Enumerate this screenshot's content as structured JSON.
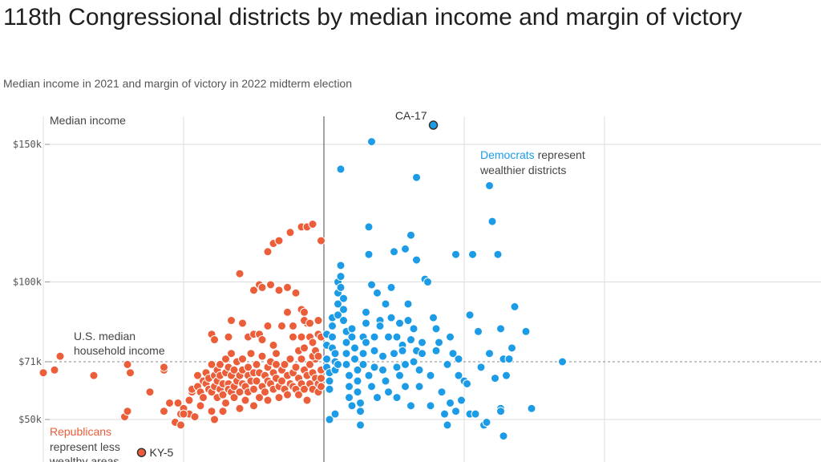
{
  "title": "118th Congressional districts by median income and margin of victory",
  "subtitle": "Median income in 2021 and margin of victory in 2022 midterm election",
  "colors": {
    "republican": "#eb5e39",
    "democrat": "#1c9be6",
    "grid": "#dddddd",
    "axis": "#666666"
  },
  "chart_data": {
    "type": "scatter",
    "ylabel": "Median income",
    "y_ticks": [
      {
        "value": 150,
        "label": "$150k"
      },
      {
        "value": 100,
        "label": "$100k"
      },
      {
        "value": 71,
        "label": "$71k"
      },
      {
        "value": 50,
        "label": "$50k"
      }
    ],
    "xlim": [
      -100,
      100
    ],
    "ylim": [
      35,
      160
    ],
    "reference_line": {
      "y": 71,
      "label_lines": [
        "U.S. median",
        "household income"
      ]
    },
    "annotations": {
      "democrats": {
        "highlight": "Democrats",
        "rest": " represent",
        "line2": "wealthier districts"
      },
      "republicans": {
        "highlight": "Republicans",
        "line2": "represent less",
        "line3": "wealthy areas"
      }
    },
    "highlighted": [
      {
        "label": "CA-17",
        "x": 39,
        "y": 157,
        "party": "D"
      },
      {
        "label": "KY-5",
        "x": -65,
        "y": 38,
        "party": "R"
      }
    ],
    "series": [
      {
        "name": "Republicans",
        "points": [
          [
            -100,
            67
          ],
          [
            -96,
            68
          ],
          [
            -94,
            73
          ],
          [
            -82,
            66
          ],
          [
            -70,
            70
          ],
          [
            -69,
            67
          ],
          [
            -71,
            51
          ],
          [
            -70,
            53
          ],
          [
            -62,
            60
          ],
          [
            -57,
            53
          ],
          [
            -57,
            68
          ],
          [
            -57,
            69
          ],
          [
            -55,
            56
          ],
          [
            -53,
            49
          ],
          [
            -52,
            56
          ],
          [
            -51,
            52
          ],
          [
            -51,
            48
          ],
          [
            -50,
            54
          ],
          [
            -48,
            57
          ],
          [
            -48,
            52
          ],
          [
            -47,
            60
          ],
          [
            -47,
            61
          ],
          [
            -46,
            51
          ],
          [
            -45,
            62
          ],
          [
            -45,
            66
          ],
          [
            -44,
            60
          ],
          [
            -44,
            55
          ],
          [
            -43,
            58
          ],
          [
            -43,
            64
          ],
          [
            -42,
            63
          ],
          [
            -42,
            67
          ],
          [
            -41,
            61
          ],
          [
            -41,
            65
          ],
          [
            -40,
            70
          ],
          [
            -40,
            60
          ],
          [
            -40,
            53
          ],
          [
            -39,
            66
          ],
          [
            -39,
            62
          ],
          [
            -39,
            50
          ],
          [
            -38,
            64
          ],
          [
            -38,
            68
          ],
          [
            -38,
            58
          ],
          [
            -37,
            61
          ],
          [
            -37,
            66
          ],
          [
            -37,
            70
          ],
          [
            -36,
            63
          ],
          [
            -36,
            59
          ],
          [
            -36,
            53
          ],
          [
            -35,
            67
          ],
          [
            -35,
            72
          ],
          [
            -35,
            56
          ],
          [
            -34,
            63
          ],
          [
            -34,
            61
          ],
          [
            -34,
            69
          ],
          [
            -33,
            66
          ],
          [
            -33,
            60
          ],
          [
            -33,
            74
          ],
          [
            -32,
            62
          ],
          [
            -32,
            68
          ],
          [
            -32,
            58
          ],
          [
            -31,
            71
          ],
          [
            -31,
            64
          ],
          [
            -30,
            66
          ],
          [
            -30,
            60
          ],
          [
            -30,
            54
          ],
          [
            -29,
            72
          ],
          [
            -29,
            68
          ],
          [
            -29,
            63
          ],
          [
            -28,
            62
          ],
          [
            -28,
            57
          ],
          [
            -27,
            66
          ],
          [
            -27,
            60
          ],
          [
            -27,
            69
          ],
          [
            -26,
            64
          ],
          [
            -26,
            74
          ],
          [
            -25,
            67
          ],
          [
            -25,
            61
          ],
          [
            -25,
            55
          ],
          [
            -24,
            70
          ],
          [
            -24,
            64
          ],
          [
            -23,
            58
          ],
          [
            -23,
            67
          ],
          [
            -22,
            73
          ],
          [
            -22,
            62
          ],
          [
            -21,
            66
          ],
          [
            -21,
            60
          ],
          [
            -20,
            69
          ],
          [
            -20,
            64
          ],
          [
            -20,
            57
          ],
          [
            -19,
            71
          ],
          [
            -19,
            63
          ],
          [
            -18,
            67
          ],
          [
            -18,
            61
          ],
          [
            -17,
            74
          ],
          [
            -17,
            65
          ],
          [
            -16,
            62
          ],
          [
            -16,
            58
          ],
          [
            -15,
            68
          ],
          [
            -15,
            64
          ],
          [
            -14,
            70
          ],
          [
            -14,
            61
          ],
          [
            -13,
            66
          ],
          [
            -13,
            59
          ],
          [
            -12,
            72
          ],
          [
            -12,
            63
          ],
          [
            -11,
            67
          ],
          [
            -11,
            62
          ],
          [
            -10,
            69
          ],
          [
            -10,
            61
          ],
          [
            -9,
            65
          ],
          [
            -9,
            59
          ],
          [
            -8,
            72
          ],
          [
            -8,
            63
          ],
          [
            -7,
            68
          ],
          [
            -7,
            61
          ],
          [
            -6,
            66
          ],
          [
            -6,
            57
          ],
          [
            -5,
            63
          ],
          [
            -5,
            70
          ],
          [
            -4,
            67
          ],
          [
            -4,
            61
          ],
          [
            -3,
            65
          ],
          [
            -3,
            72
          ],
          [
            -2,
            63
          ],
          [
            -2,
            60
          ],
          [
            -1,
            68
          ],
          [
            -1,
            65
          ],
          [
            -1,
            62
          ],
          [
            -40,
            81
          ],
          [
            -39,
            79
          ],
          [
            -34,
            80
          ],
          [
            -33,
            86
          ],
          [
            -29,
            85
          ],
          [
            -27,
            80
          ],
          [
            -25,
            81
          ],
          [
            -23,
            81
          ],
          [
            -22,
            79
          ],
          [
            -20,
            84
          ],
          [
            -18,
            77
          ],
          [
            -17,
            70
          ],
          [
            -15,
            84
          ],
          [
            -13,
            89
          ],
          [
            -11,
            84
          ],
          [
            -11,
            80
          ],
          [
            -9,
            75
          ],
          [
            -8,
            80
          ],
          [
            -7,
            76
          ],
          [
            -6,
            85
          ],
          [
            -5,
            80
          ],
          [
            -4,
            73
          ],
          [
            -3,
            75
          ],
          [
            -2,
            73
          ],
          [
            -30,
            103
          ],
          [
            -25,
            97
          ],
          [
            -23,
            99
          ],
          [
            -22,
            98
          ],
          [
            -19,
            99
          ],
          [
            -16,
            97
          ],
          [
            -13,
            98
          ],
          [
            -10,
            96
          ],
          [
            -8,
            90
          ],
          [
            -7,
            89
          ],
          [
            -7,
            86
          ],
          [
            -5,
            85
          ],
          [
            -4,
            78
          ],
          [
            -2,
            86
          ],
          [
            -2,
            81
          ],
          [
            -1,
            80
          ],
          [
            -20,
            111
          ],
          [
            -18,
            114
          ],
          [
            -16,
            115
          ],
          [
            -12,
            118
          ],
          [
            -8,
            120
          ],
          [
            -6,
            120
          ],
          [
            -4,
            121
          ],
          [
            -1,
            115
          ],
          [
            -10,
            96
          ],
          [
            -50,
            52
          ]
        ]
      },
      {
        "name": "Democrats",
        "points": [
          [
            1,
            81
          ],
          [
            1,
            77
          ],
          [
            1,
            72
          ],
          [
            1,
            69
          ],
          [
            2,
            67
          ],
          [
            2,
            64
          ],
          [
            2,
            61
          ],
          [
            2,
            50
          ],
          [
            3,
            87
          ],
          [
            3,
            84
          ],
          [
            3,
            80
          ],
          [
            3,
            76
          ],
          [
            4,
            74
          ],
          [
            4,
            71
          ],
          [
            4,
            68
          ],
          [
            4,
            52
          ],
          [
            5,
            100
          ],
          [
            5,
            96
          ],
          [
            5,
            92
          ],
          [
            5,
            88
          ],
          [
            5,
            70
          ],
          [
            6,
            106
          ],
          [
            6,
            102
          ],
          [
            6,
            98
          ],
          [
            7,
            94
          ],
          [
            7,
            90
          ],
          [
            7,
            86
          ],
          [
            8,
            82
          ],
          [
            8,
            78
          ],
          [
            8,
            74
          ],
          [
            8,
            70
          ],
          [
            9,
            66
          ],
          [
            9,
            62
          ],
          [
            9,
            58
          ],
          [
            10,
            55
          ],
          [
            10,
            80
          ],
          [
            10,
            83
          ],
          [
            11,
            76
          ],
          [
            11,
            72
          ],
          [
            12,
            68
          ],
          [
            12,
            64
          ],
          [
            12,
            60
          ],
          [
            13,
            56
          ],
          [
            13,
            53
          ],
          [
            13,
            48
          ],
          [
            14,
            80
          ],
          [
            14,
            74
          ],
          [
            14,
            70
          ],
          [
            15,
            89
          ],
          [
            15,
            85
          ],
          [
            15,
            78
          ],
          [
            16,
            110
          ],
          [
            16,
            66
          ],
          [
            17,
            99
          ],
          [
            17,
            62
          ],
          [
            18,
            80
          ],
          [
            18,
            75
          ],
          [
            18,
            69
          ],
          [
            19,
            96
          ],
          [
            19,
            58
          ],
          [
            20,
            86
          ],
          [
            20,
            84
          ],
          [
            21,
            73
          ],
          [
            21,
            68
          ],
          [
            22,
            92
          ],
          [
            22,
            64
          ],
          [
            23,
            80
          ],
          [
            23,
            60
          ],
          [
            24,
            98
          ],
          [
            24,
            87
          ],
          [
            25,
            111
          ],
          [
            25,
            74
          ],
          [
            26,
            80
          ],
          [
            26,
            69
          ],
          [
            26,
            58
          ],
          [
            27,
            85
          ],
          [
            27,
            66
          ],
          [
            28,
            77
          ],
          [
            28,
            75
          ],
          [
            29,
            112
          ],
          [
            29,
            70
          ],
          [
            29,
            62
          ],
          [
            30,
            92
          ],
          [
            30,
            86
          ],
          [
            31,
            79
          ],
          [
            31,
            55
          ],
          [
            32,
            83
          ],
          [
            32,
            71
          ],
          [
            33,
            108
          ],
          [
            33,
            75
          ],
          [
            34,
            68
          ],
          [
            34,
            62
          ],
          [
            35,
            78
          ],
          [
            35,
            74
          ],
          [
            36,
            101
          ],
          [
            37,
            100
          ],
          [
            38,
            66
          ],
          [
            38,
            55
          ],
          [
            39,
            87
          ],
          [
            40,
            83
          ],
          [
            40,
            75
          ],
          [
            41,
            78
          ],
          [
            42,
            60
          ],
          [
            43,
            52
          ],
          [
            44,
            48
          ],
          [
            44,
            70
          ],
          [
            45,
            56
          ],
          [
            45,
            80
          ],
          [
            46,
            74
          ],
          [
            47,
            110
          ],
          [
            47,
            53
          ],
          [
            48,
            72
          ],
          [
            48,
            66
          ],
          [
            49,
            57
          ],
          [
            50,
            64
          ],
          [
            51,
            63
          ],
          [
            52,
            88
          ],
          [
            52,
            52
          ],
          [
            53,
            110
          ],
          [
            54,
            52
          ],
          [
            55,
            82
          ],
          [
            56,
            69
          ],
          [
            57,
            48
          ],
          [
            58,
            49
          ],
          [
            59,
            74
          ],
          [
            60,
            122
          ],
          [
            61,
            65
          ],
          [
            62,
            110
          ],
          [
            63,
            83
          ],
          [
            63,
            54
          ],
          [
            63,
            53
          ],
          [
            64,
            72
          ],
          [
            64,
            44
          ],
          [
            65,
            66
          ],
          [
            66,
            72
          ],
          [
            67,
            76
          ],
          [
            68,
            91
          ],
          [
            72,
            82
          ],
          [
            74,
            54
          ],
          [
            85,
            71
          ],
          [
            17,
            151
          ],
          [
            6,
            141
          ],
          [
            33,
            138
          ],
          [
            59,
            135
          ],
          [
            16,
            120
          ],
          [
            31,
            117
          ]
        ]
      }
    ]
  }
}
